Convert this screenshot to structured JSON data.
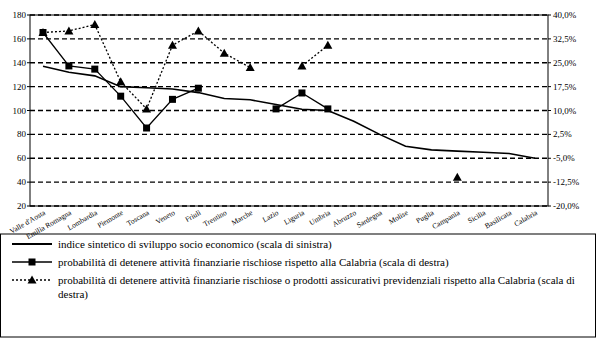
{
  "chart_data": {
    "type": "line",
    "categories": [
      "Valle d'Aosta",
      "Emilia Romagna",
      "Lombardia",
      "Piemonte",
      "Toscana",
      "Veneto",
      "Friuli",
      "Trentino",
      "Marche",
      "Lazio",
      "Liguria",
      "Umbria",
      "Abruzzo",
      "Sardegna",
      "Molise",
      "Puglia",
      "Campania",
      "Sicilia",
      "Basilicata",
      "Calabria"
    ],
    "series": [
      {
        "name": "indice sintetico di sviluppo socio economico (scala di sinistra)",
        "color": "#000000",
        "marker": "none",
        "line_style": "solid",
        "values": [
          137,
          132,
          129,
          120,
          119,
          118,
          115,
          110,
          109,
          105,
          101,
          100,
          91,
          80,
          70,
          67,
          66,
          65,
          64,
          60
        ]
      },
      {
        "name": "probabilità di detenere attività finanziarie rischiose rispetto alla Calabria (scala di destra)",
        "color": "#000000",
        "marker": "square",
        "line_style": "solid",
        "axis": "y2",
        "values": [
          34.5,
          24,
          23,
          14.5,
          4.5,
          13.5,
          17,
          null,
          null,
          10.5,
          15.5,
          10.5,
          null,
          null,
          null,
          null,
          null,
          null,
          null,
          null
        ]
      },
      {
        "name": "probabilità di detenere attività finanziarie rischiose o prodotti assicurativi previdenziali rispetto alla Calabria (scala di destra)",
        "color": "#000000",
        "marker": "triangle",
        "line_style": "dotted",
        "axis": "y2",
        "values": [
          34.5,
          35,
          37,
          19,
          10.5,
          30.5,
          35,
          28,
          23.5,
          null,
          24,
          30.5,
          null,
          null,
          null,
          null,
          -11,
          null,
          null,
          null
        ]
      }
    ],
    "ylim": [
      20,
      180
    ],
    "yticks": [
      20,
      40,
      60,
      80,
      100,
      120,
      140,
      160,
      180
    ],
    "y2lim": [
      -20,
      40
    ],
    "y2ticks": [
      {
        "value": -20,
        "label": "-20,0%"
      },
      {
        "value": -12.5,
        "label": "-12,5%"
      },
      {
        "value": -5,
        "label": "-5,0%"
      },
      {
        "value": 2.5,
        "label": "2,5%"
      },
      {
        "value": 10,
        "label": "10,0%"
      },
      {
        "value": 17.5,
        "label": "17,5%"
      },
      {
        "value": 25,
        "label": "25,0%"
      },
      {
        "value": 32.5,
        "label": "32,5%"
      },
      {
        "value": 40,
        "label": "40,0%"
      }
    ],
    "grid": true,
    "legend": "bottom"
  }
}
